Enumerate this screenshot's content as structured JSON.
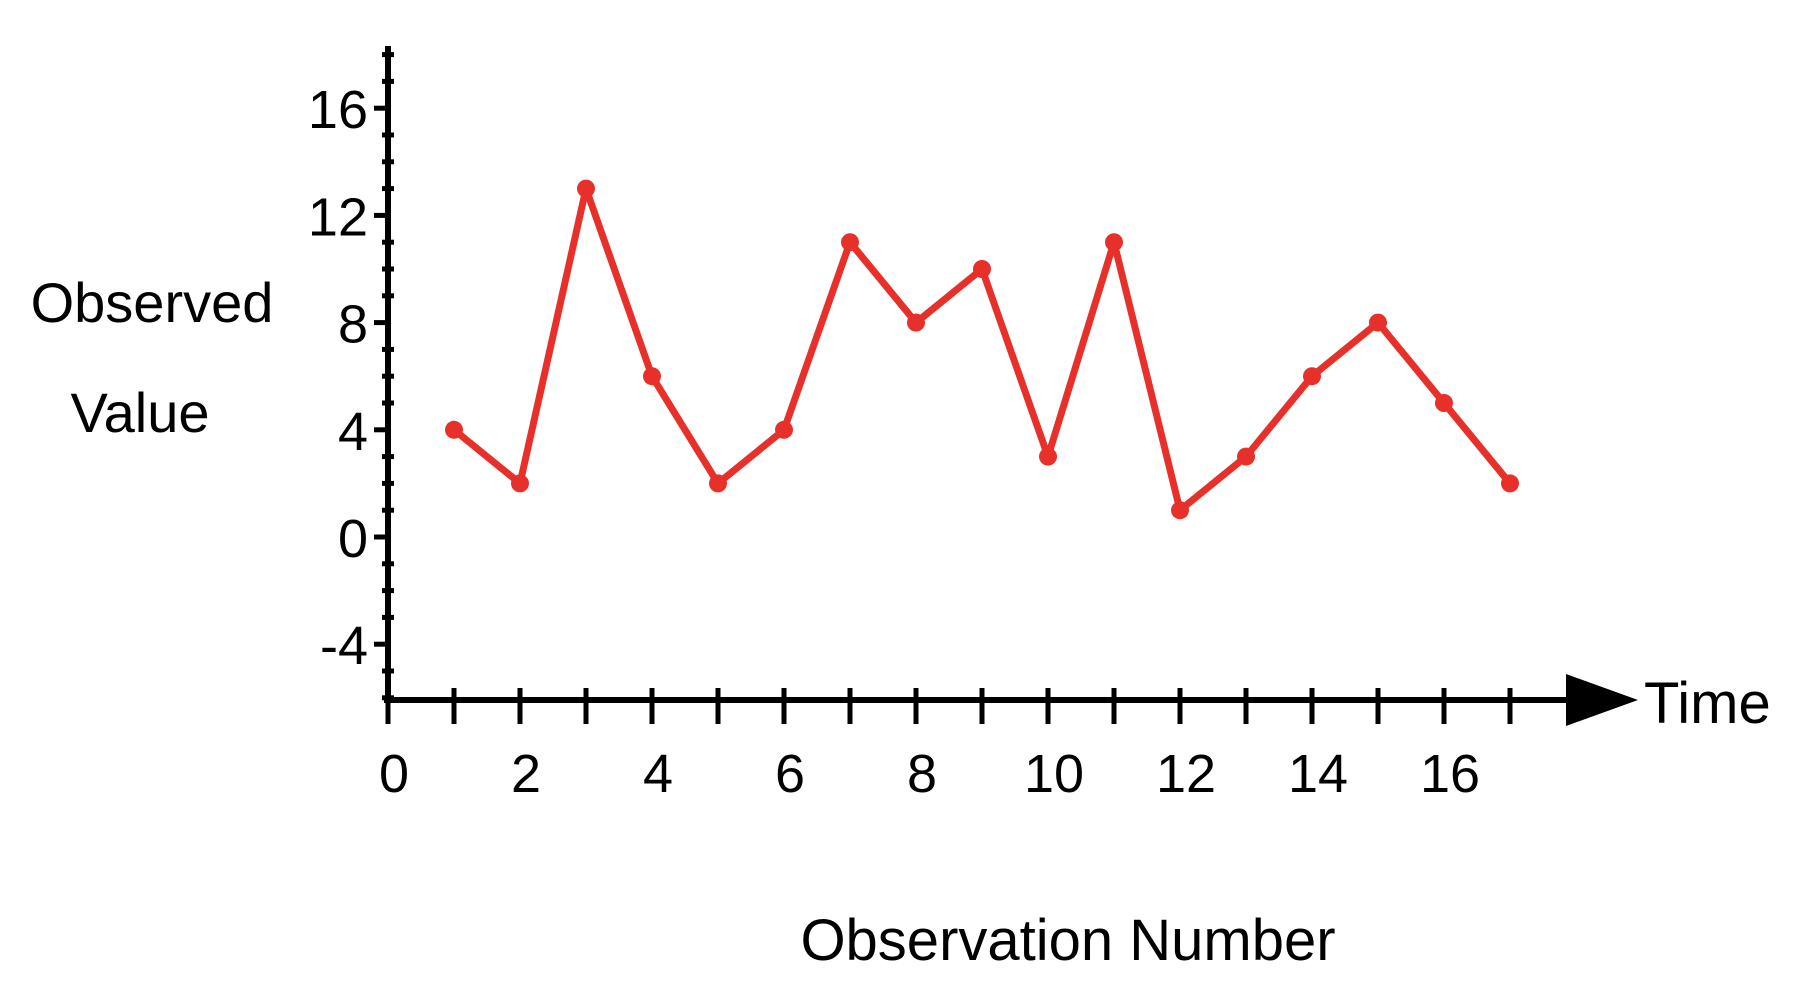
{
  "chart_data": {
    "type": "line",
    "title": "",
    "xlabel": "Observation Number",
    "ylabel_lines": [
      "Observed",
      "Value"
    ],
    "axis_end_label": "Time",
    "xlim": [
      0,
      17.8
    ],
    "ylim": [
      -6,
      18
    ],
    "x_ticks": [
      0,
      2,
      4,
      6,
      8,
      10,
      12,
      14,
      16
    ],
    "y_ticks": [
      -4,
      0,
      4,
      8,
      12,
      16
    ],
    "x_tick_labels": [
      "0",
      "2",
      "4",
      "6",
      "8",
      "10",
      "12",
      "14",
      "16"
    ],
    "y_tick_labels": [
      "-4",
      "0",
      "4",
      "8",
      "12",
      "16"
    ],
    "grid": false,
    "series": [
      {
        "color": "#e8302a",
        "x": [
          1,
          2,
          3,
          4,
          5,
          6,
          7,
          8,
          9,
          10,
          11,
          12,
          13,
          14,
          15,
          16,
          17
        ],
        "y": [
          4,
          2,
          13,
          6,
          2,
          4,
          11,
          8,
          10,
          3,
          11,
          1,
          3,
          6,
          8,
          5,
          2
        ]
      }
    ]
  }
}
